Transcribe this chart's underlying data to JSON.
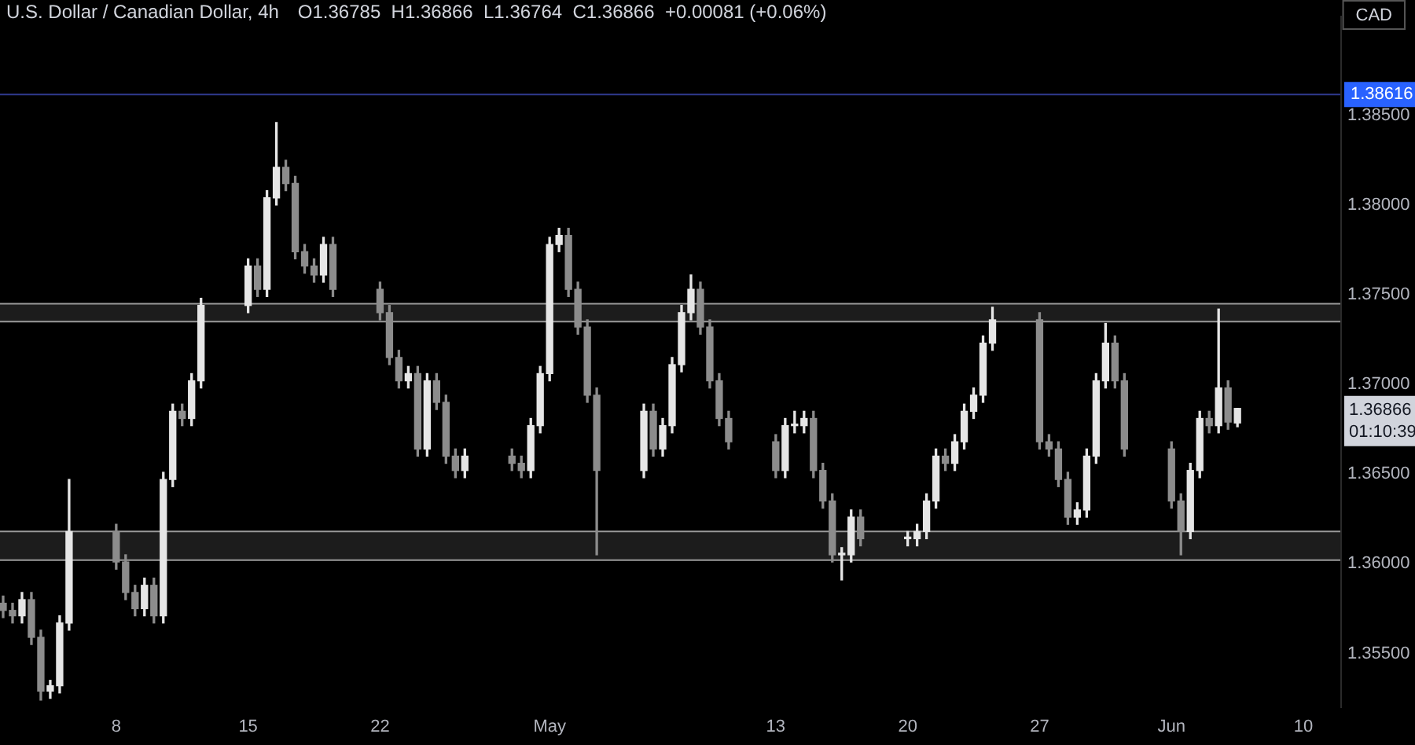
{
  "chart_data": {
    "type": "candlestick",
    "title": "U.S. Dollar / Canadian Dollar, 4h",
    "subtitle": "O1.36785  H1.36866  L1.36764  C1.36866  +0.00081 (+0.06%)",
    "x": [
      "--04-02T00:00",
      "--04-02T12:00",
      "--04-03T00:00",
      "--04-03T12:00",
      "--04-04T00:00",
      "--04-04T12:00",
      "--04-05T00:00",
      "--04-05T12:00",
      "--04-08T00:00",
      "--04-08T12:00",
      "--04-09T00:00",
      "--04-09T12:00",
      "--04-10T00:00",
      "--04-10T12:00",
      "--04-11T00:00",
      "--04-11T12:00",
      "--04-12T00:00",
      "--04-12T12:00",
      "--04-15T00:00",
      "--04-15T12:00",
      "--04-16T00:00",
      "--04-16T12:00",
      "--04-17T00:00",
      "--04-17T12:00",
      "--04-18T00:00",
      "--04-18T12:00",
      "--04-19T00:00",
      "--04-19T12:00",
      "--04-22T00:00",
      "--04-22T12:00",
      "--04-23T00:00",
      "--04-23T12:00",
      "--04-24T00:00",
      "--04-24T12:00",
      "--04-25T00:00",
      "--04-25T12:00",
      "--04-26T00:00",
      "--04-26T12:00",
      "--04-29T00:00",
      "--04-29T12:00",
      "--04-30T00:00",
      "--04-30T12:00",
      "--05-01T00:00",
      "--05-01T12:00",
      "--05-02T00:00",
      "--05-02T12:00",
      "--05-03T00:00",
      "--05-03T12:00",
      "--05-06T00:00",
      "--05-06T12:00",
      "--05-07T00:00",
      "--05-07T12:00",
      "--05-08T00:00",
      "--05-08T12:00",
      "--05-09T00:00",
      "--05-09T12:00",
      "--05-10T00:00",
      "--05-10T12:00",
      "--05-13T00:00",
      "--05-13T12:00",
      "--05-14T00:00",
      "--05-14T12:00",
      "--05-15T00:00",
      "--05-15T12:00",
      "--05-16T00:00",
      "--05-16T12:00",
      "--05-17T00:00",
      "--05-17T12:00",
      "--05-20T00:00",
      "--05-20T12:00",
      "--05-21T00:00",
      "--05-21T12:00",
      "--05-22T00:00",
      "--05-22T12:00",
      "--05-23T00:00",
      "--05-23T12:00",
      "--05-24T00:00",
      "--05-24T12:00",
      "--05-27T00:00",
      "--05-27T12:00",
      "--05-28T00:00",
      "--05-28T12:00",
      "--05-29T00:00",
      "--05-29T12:00",
      "--05-30T00:00",
      "--05-30T12:00",
      "--05-31T00:00",
      "--05-31T12:00",
      "--06-03T00:00",
      "--06-03T12:00",
      "--06-04T00:00",
      "--06-04T12:00",
      "--06-05T00:00",
      "--06-05T12:00",
      "--06-06T00:00",
      "--06-06T12:00"
    ],
    "ohlc": [
      [
        1.3578,
        1.3582,
        1.357,
        1.3574
      ],
      [
        1.3574,
        1.3578,
        1.3567,
        1.3571
      ],
      [
        1.3571,
        1.3584,
        1.3567,
        1.358
      ],
      [
        1.358,
        1.3584,
        1.3555,
        1.3559
      ],
      [
        1.3559,
        1.3563,
        1.3524,
        1.3529
      ],
      [
        1.3529,
        1.3535,
        1.3525,
        1.3532
      ],
      [
        1.3532,
        1.3571,
        1.3528,
        1.3567
      ],
      [
        1.3567,
        1.3647,
        1.3563,
        1.3618
      ],
      [
        1.3618,
        1.3622,
        1.3597,
        1.3601
      ],
      [
        1.3601,
        1.3605,
        1.358,
        1.3584
      ],
      [
        1.3584,
        1.3588,
        1.3571,
        1.3575
      ],
      [
        1.3575,
        1.3592,
        1.3571,
        1.3588
      ],
      [
        1.3588,
        1.3592,
        1.3567,
        1.3571
      ],
      [
        1.3571,
        1.3651,
        1.3567,
        1.3647
      ],
      [
        1.3647,
        1.3689,
        1.3643,
        1.3685
      ],
      [
        1.3685,
        1.3689,
        1.3677,
        1.3681
      ],
      [
        1.3681,
        1.3706,
        1.3677,
        1.3702
      ],
      [
        1.3702,
        1.3748,
        1.3698,
        1.3744
      ],
      [
        1.3744,
        1.377,
        1.374,
        1.3766
      ],
      [
        1.3766,
        1.377,
        1.3749,
        1.3753
      ],
      [
        1.3753,
        1.3808,
        1.3749,
        1.3804
      ],
      [
        1.3804,
        1.3846,
        1.38,
        1.3821
      ],
      [
        1.3821,
        1.3825,
        1.3808,
        1.3812
      ],
      [
        1.3812,
        1.3816,
        1.377,
        1.3774
      ],
      [
        1.3774,
        1.3778,
        1.3762,
        1.3766
      ],
      [
        1.3766,
        1.377,
        1.3757,
        1.3761
      ],
      [
        1.3761,
        1.3782,
        1.3757,
        1.3778
      ],
      [
        1.3778,
        1.3782,
        1.3749,
        1.3753
      ],
      [
        1.3753,
        1.3757,
        1.3736,
        1.374
      ],
      [
        1.374,
        1.3744,
        1.3711,
        1.3715
      ],
      [
        1.3715,
        1.3719,
        1.3698,
        1.3702
      ],
      [
        1.3702,
        1.371,
        1.3698,
        1.3706
      ],
      [
        1.3706,
        1.371,
        1.366,
        1.3664
      ],
      [
        1.3664,
        1.3706,
        1.366,
        1.3702
      ],
      [
        1.3702,
        1.3706,
        1.3686,
        1.369
      ],
      [
        1.369,
        1.3694,
        1.3656,
        1.366
      ],
      [
        1.366,
        1.3664,
        1.3648,
        1.3652
      ],
      [
        1.3652,
        1.3664,
        1.3648,
        1.366
      ],
      [
        1.366,
        1.3664,
        1.3652,
        1.3656
      ],
      [
        1.3656,
        1.366,
        1.3648,
        1.3652
      ],
      [
        1.3652,
        1.3681,
        1.3648,
        1.3677
      ],
      [
        1.3677,
        1.371,
        1.3673,
        1.3706
      ],
      [
        1.3706,
        1.3782,
        1.3702,
        1.3778
      ],
      [
        1.3778,
        1.3787,
        1.3774,
        1.3783
      ],
      [
        1.3783,
        1.3787,
        1.3749,
        1.3753
      ],
      [
        1.3753,
        1.3757,
        1.3728,
        1.3732
      ],
      [
        1.3732,
        1.3736,
        1.369,
        1.3694
      ],
      [
        1.3694,
        1.3698,
        1.3605,
        1.3652
      ],
      [
        1.3652,
        1.3689,
        1.3648,
        1.3685
      ],
      [
        1.3685,
        1.3689,
        1.366,
        1.3664
      ],
      [
        1.3664,
        1.3681,
        1.366,
        1.3677
      ],
      [
        1.3677,
        1.3715,
        1.3673,
        1.3711
      ],
      [
        1.3711,
        1.3744,
        1.3707,
        1.374
      ],
      [
        1.374,
        1.3761,
        1.3736,
        1.3753
      ],
      [
        1.3753,
        1.3757,
        1.3728,
        1.3732
      ],
      [
        1.3732,
        1.3736,
        1.3698,
        1.3702
      ],
      [
        1.3702,
        1.3706,
        1.3677,
        1.3681
      ],
      [
        1.3681,
        1.3685,
        1.3664,
        1.3668
      ],
      [
        1.3668,
        1.3672,
        1.3648,
        1.3652
      ],
      [
        1.3652,
        1.3681,
        1.3648,
        1.3677
      ],
      [
        1.3677,
        1.3685,
        1.3673,
        1.3677
      ],
      [
        1.3677,
        1.3685,
        1.3673,
        1.3681
      ],
      [
        1.3681,
        1.3685,
        1.3648,
        1.3652
      ],
      [
        1.3652,
        1.3656,
        1.3631,
        1.3635
      ],
      [
        1.3635,
        1.3639,
        1.3601,
        1.3605
      ],
      [
        1.3605,
        1.3609,
        1.3591,
        1.3605
      ],
      [
        1.3605,
        1.363,
        1.3601,
        1.3626
      ],
      [
        1.3626,
        1.363,
        1.361,
        1.3614
      ],
      [
        1.3614,
        1.3618,
        1.361,
        1.3614
      ],
      [
        1.3614,
        1.3622,
        1.361,
        1.3618
      ],
      [
        1.3618,
        1.3639,
        1.3614,
        1.3635
      ],
      [
        1.3635,
        1.3664,
        1.3631,
        1.366
      ],
      [
        1.366,
        1.3664,
        1.3652,
        1.3656
      ],
      [
        1.3656,
        1.3672,
        1.3652,
        1.3668
      ],
      [
        1.3668,
        1.3689,
        1.3664,
        1.3685
      ],
      [
        1.3685,
        1.3698,
        1.3681,
        1.3694
      ],
      [
        1.3694,
        1.3727,
        1.369,
        1.3723
      ],
      [
        1.3723,
        1.3743,
        1.3719,
        1.3736
      ],
      [
        1.3736,
        1.374,
        1.3664,
        1.3668
      ],
      [
        1.3668,
        1.3672,
        1.366,
        1.3664
      ],
      [
        1.3664,
        1.3668,
        1.3643,
        1.3647
      ],
      [
        1.3647,
        1.3651,
        1.3622,
        1.3626
      ],
      [
        1.3626,
        1.3634,
        1.3622,
        1.363
      ],
      [
        1.363,
        1.3664,
        1.3626,
        1.366
      ],
      [
        1.366,
        1.3706,
        1.3656,
        1.3702
      ],
      [
        1.3702,
        1.3734,
        1.3698,
        1.3723
      ],
      [
        1.3723,
        1.3727,
        1.3698,
        1.3702
      ],
      [
        1.3702,
        1.3706,
        1.366,
        1.3664
      ],
      [
        1.3664,
        1.3668,
        1.3631,
        1.3635
      ],
      [
        1.3635,
        1.3639,
        1.3605,
        1.3618
      ],
      [
        1.3618,
        1.3656,
        1.3614,
        1.3652
      ],
      [
        1.3652,
        1.3685,
        1.3648,
        1.3681
      ],
      [
        1.3681,
        1.3685,
        1.3673,
        1.3677
      ],
      [
        1.3677,
        1.3742,
        1.3673,
        1.3698
      ],
      [
        1.3698,
        1.3702,
        1.3675,
        1.3679
      ],
      [
        1.36785,
        1.36866,
        1.36764,
        1.36866
      ]
    ],
    "xlim": [
      "--04-01T20:00",
      "--06-12T00:00"
    ],
    "xticks": [
      {
        "value": "--04-08",
        "label": "8"
      },
      {
        "value": "--04-15",
        "label": "15"
      },
      {
        "value": "--04-22",
        "label": "22"
      },
      {
        "value": "--05-01",
        "label": "May"
      },
      {
        "value": "--05-13",
        "label": "13"
      },
      {
        "value": "--05-20",
        "label": "20"
      },
      {
        "value": "--05-27",
        "label": "27"
      },
      {
        "value": "--06-03",
        "label": "Jun"
      },
      {
        "value": "--06-10",
        "label": "10"
      }
    ],
    "ylim": [
      1.352,
      1.3905
    ],
    "yticks": [
      {
        "value": 1.355,
        "label": "1.35500"
      },
      {
        "value": 1.36,
        "label": "1.36000"
      },
      {
        "value": 1.365,
        "label": "1.36500"
      },
      {
        "value": 1.37,
        "label": "1.37000"
      },
      {
        "value": 1.375,
        "label": "1.37500"
      },
      {
        "value": 1.38,
        "label": "1.38000"
      },
      {
        "value": 1.385,
        "label": "1.38500"
      }
    ],
    "ref_lines": [
      {
        "axis": "y",
        "value": 1.38616,
        "label": "1.38616",
        "color": "#2f3a8f"
      }
    ],
    "bands": [
      {
        "axis": "y",
        "from": 1.3602,
        "to": 1.3618,
        "color": "#1c1c1c"
      },
      {
        "axis": "y",
        "from": 1.3735,
        "to": 1.3745,
        "color": "#1c1c1c"
      }
    ],
    "annotations": [
      "CAD",
      "1.36866",
      "01:10:39"
    ]
  }
}
